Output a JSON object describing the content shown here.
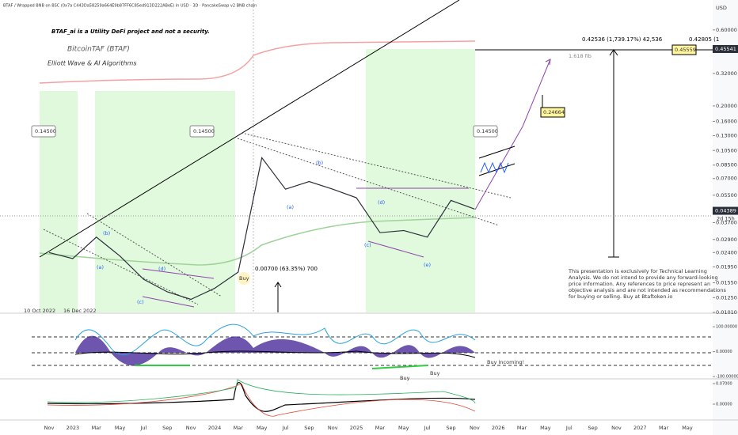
{
  "header": {
    "symbol": "BTAF / Wrapped BNB on BSC (0x7a C443Da58259a664E9b87FF6C85ed913D222ABeE) in USD · 3D · PancakeSwap v2 BNB chain",
    "currency": "USD"
  },
  "annotations": {
    "disclaimer_title": "BTAF_ai is a Utility DeFi project and not a security.",
    "name": "BitcoinTAF (BTAF)",
    "method": "Elliott Wave & AI Algorithms",
    "level_1": "0.14500",
    "level_2": "0.14500",
    "level_3": "0.14500",
    "buy_1": "Buy",
    "range_1": "0.00700 (63.35%) 700",
    "date_1": "10 Oct 2022",
    "date_2": "16 Dec 2022",
    "range_2": "0.42536 (1,739.17%) 42,536",
    "range_3": "0.42805 (1",
    "fib": "1.618 fib",
    "target_1": "0.45559",
    "target_2": "0.24664",
    "countdown": "2d 15h",
    "waves": [
      "(a)",
      "(b)",
      "(c)",
      "(d)",
      "(a)",
      "(b)",
      "(c)",
      "(d)",
      "(e)"
    ],
    "disclaimer": [
      "This presentation is exclusively for Technical Learning",
      "Analysis. We do not intend to provide any forward-looking",
      "price information. Any references to price represent an",
      "objective analysis and are not intended as recommendations",
      "for buying or selling. Buy at Btaftoken.io"
    ],
    "buy_incoming": "Buy Incoming!",
    "buy_2": "Buy",
    "buy_3": "Buy"
  },
  "chart_data": {
    "type": "line",
    "log_scale": true,
    "color": "#2a2e39",
    "categories": [
      "Nov",
      "2023",
      "Mar",
      "May",
      "Jul",
      "Sep",
      "Nov",
      "2024",
      "Mar",
      "May",
      "Jul",
      "Sep",
      "Nov",
      "2025",
      "Mar",
      "May",
      "Jul",
      "Sep",
      "Nov",
      "2026",
      "Mar",
      "May",
      "Jul",
      "Sep",
      "Nov",
      "2027",
      "Mar",
      "May"
    ],
    "values": [
      0.024,
      0.022,
      0.03,
      0.0228,
      0.0163,
      0.0136,
      0.0122,
      0.0143,
      0.0181,
      0.0946,
      0.06,
      0.067,
      0.06,
      0.053,
      0.032,
      0.033,
      0.03,
      0.051,
      0.045,
      null,
      null,
      null,
      null,
      null,
      null,
      null,
      null,
      null
    ],
    "ylim": [
      0.0101,
      0.925
    ],
    "yticks": [
      {
        "value": 0.6,
        "label": "0.60000"
      },
      {
        "value": 0.32,
        "label": "0.32000"
      },
      {
        "value": 0.2,
        "label": "0.20000"
      },
      {
        "value": 0.16,
        "label": "0.16000"
      },
      {
        "value": 0.13,
        "label": "0.13000"
      },
      {
        "value": 0.105,
        "label": "0.10500"
      },
      {
        "value": 0.085,
        "label": "0.08500"
      },
      {
        "value": 0.07,
        "label": "0.07000"
      },
      {
        "value": 0.055,
        "label": "0.05500"
      },
      {
        "value": 0.037,
        "label": "0.03700"
      },
      {
        "value": 0.029,
        "label": "0.02900"
      },
      {
        "value": 0.024,
        "label": "0.02400"
      },
      {
        "value": 0.0195,
        "label": "0.01950"
      },
      {
        "value": 0.0155,
        "label": "0.01550"
      },
      {
        "value": 0.0125,
        "label": "0.01250"
      },
      {
        "value": 0.0101,
        "label": "0.01010"
      }
    ],
    "markers": [
      {
        "value": 0.45541,
        "label": "0.45541"
      },
      {
        "value": 0.04389,
        "label": "0.04389"
      }
    ]
  },
  "oscillator": {
    "ylim": [
      -106,
      148
    ],
    "yticks": [
      {
        "value": 100,
        "label": "100.00000"
      },
      {
        "value": 0,
        "label": "0.00000"
      },
      {
        "value": -100,
        "label": "-100.00000"
      }
    ]
  },
  "lower_pane": {
    "ylim": [
      -0.0512,
      0.0835
    ],
    "yticks": [
      {
        "value": 0.07,
        "label": "0.07000"
      },
      {
        "value": 0,
        "label": "0.00000"
      }
    ]
  }
}
